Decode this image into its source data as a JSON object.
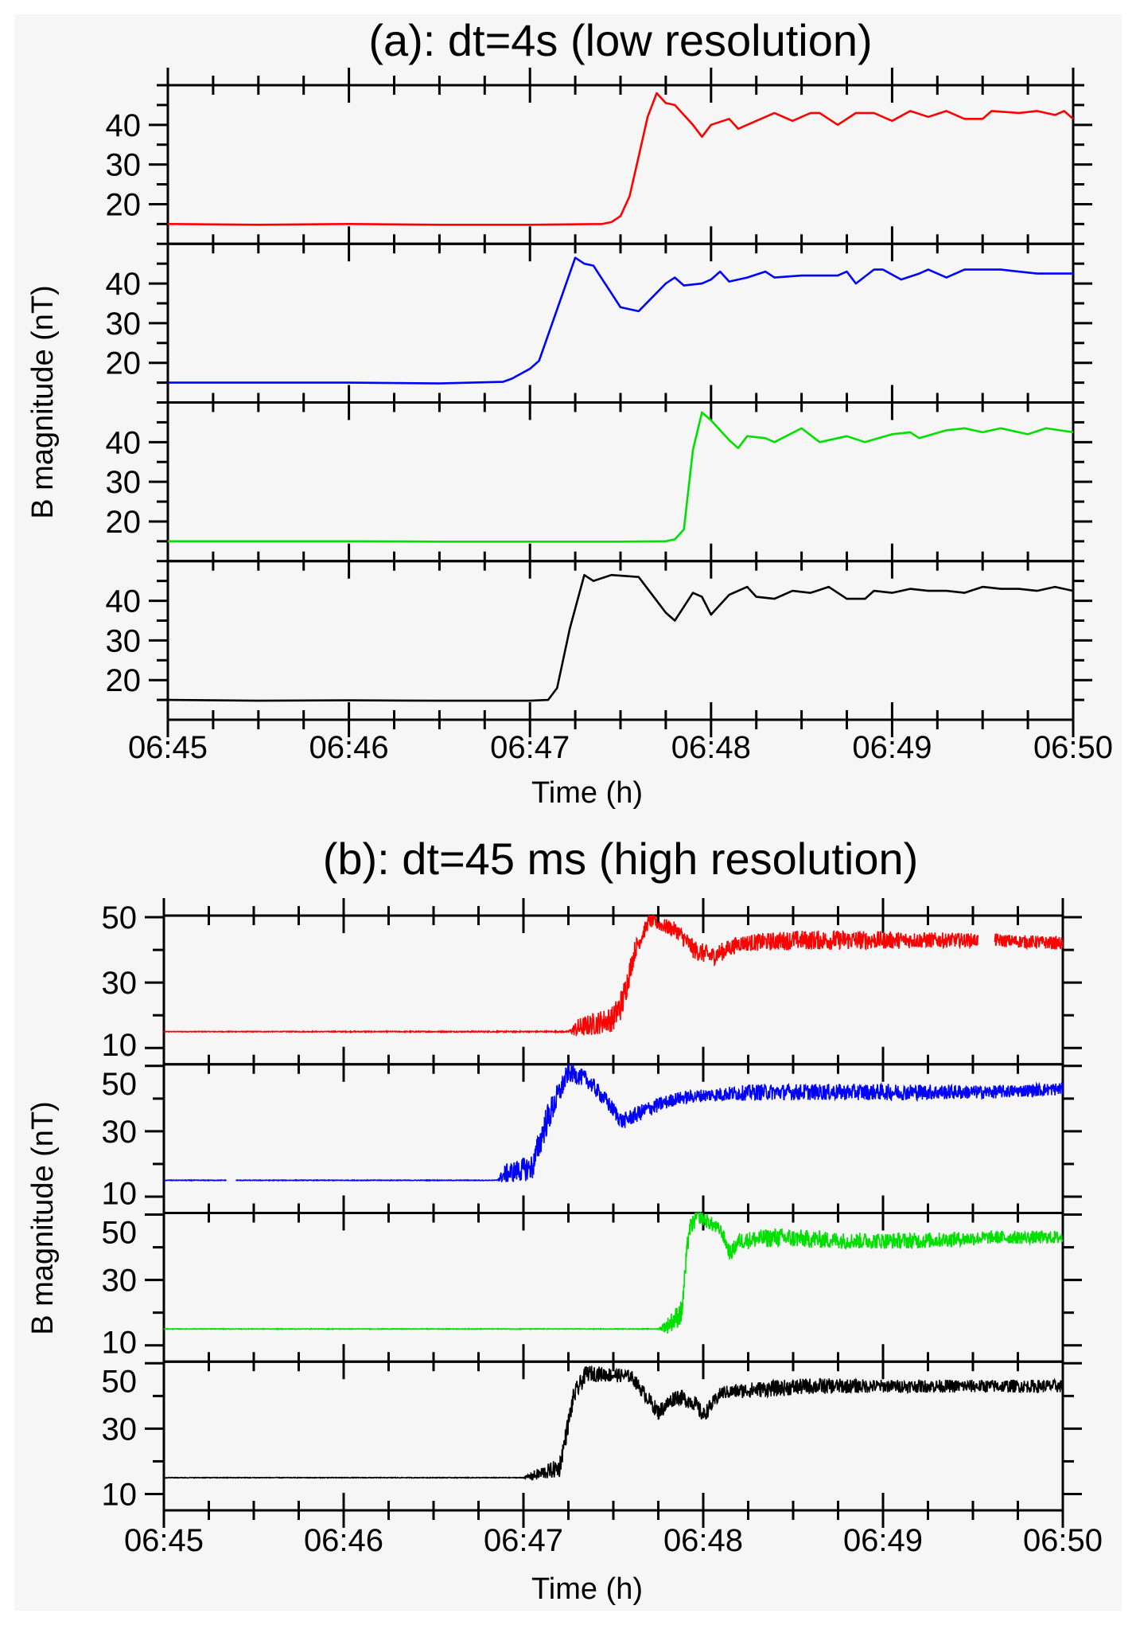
{
  "chart_data": [
    {
      "type": "line",
      "title": "(a): dt=4s (low resolution)",
      "xlabel": "Time (h)",
      "ylabel": "B magnitude (nT)",
      "xlim": [
        0,
        5
      ],
      "x_unit": "minutes after 06:45",
      "xticks": [
        "06:45",
        "06:46",
        "06:47",
        "06:48",
        "06:49",
        "06:50"
      ],
      "ylim": [
        10,
        50
      ],
      "yticks": [
        20,
        30,
        40
      ],
      "grid": false,
      "series": [
        {
          "name": "panel-1",
          "color": "#ff0000",
          "x": [
            0,
            0.5,
            1,
            1.5,
            2,
            2.4,
            2.45,
            2.5,
            2.55,
            2.6,
            2.65,
            2.7,
            2.75,
            2.8,
            2.9,
            2.95,
            3.0,
            3.1,
            3.15,
            3.25,
            3.35,
            3.45,
            3.55,
            3.6,
            3.7,
            3.8,
            3.9,
            4.0,
            4.1,
            4.2,
            4.3,
            4.4,
            4.5,
            4.55,
            4.7,
            4.8,
            4.9,
            4.95,
            5.0
          ],
          "y": [
            15,
            14.8,
            15,
            14.8,
            14.8,
            15,
            15.5,
            17,
            22,
            32,
            42,
            48,
            45.5,
            45,
            40,
            37,
            40,
            41.5,
            39,
            41,
            43,
            41,
            43,
            43,
            40,
            43,
            43,
            41,
            43.5,
            42,
            43.5,
            41.5,
            41.5,
            43.5,
            43,
            43.5,
            42.5,
            43.5,
            41.5
          ]
        },
        {
          "name": "panel-2",
          "color": "#0000ff",
          "x": [
            0,
            0.5,
            1,
            1.5,
            1.85,
            1.9,
            2.0,
            2.05,
            2.1,
            2.2,
            2.25,
            2.3,
            2.35,
            2.5,
            2.6,
            2.75,
            2.8,
            2.85,
            2.95,
            3.0,
            3.05,
            3.1,
            3.2,
            3.3,
            3.35,
            3.5,
            3.7,
            3.75,
            3.8,
            3.9,
            3.95,
            4.05,
            4.15,
            4.2,
            4.3,
            4.4,
            4.6,
            4.8,
            5.0
          ],
          "y": [
            15,
            15,
            15,
            14.8,
            15.2,
            16,
            18.5,
            20.5,
            27,
            40,
            46.5,
            45,
            44.5,
            34,
            33,
            40,
            41.5,
            39.5,
            40,
            41,
            43,
            40.5,
            41.5,
            43,
            41.5,
            42,
            42,
            43,
            40,
            43.5,
            43.5,
            41,
            42.5,
            43.5,
            41.5,
            43.5,
            43.5,
            42.5,
            42.5
          ]
        },
        {
          "name": "panel-3",
          "color": "#00e000",
          "x": [
            0,
            0.5,
            1,
            1.5,
            2,
            2.5,
            2.75,
            2.8,
            2.85,
            2.9,
            2.95,
            3.0,
            3.1,
            3.15,
            3.2,
            3.3,
            3.35,
            3.5,
            3.6,
            3.75,
            3.85,
            4.0,
            4.1,
            4.15,
            4.3,
            4.4,
            4.5,
            4.6,
            4.75,
            4.85,
            5.0
          ],
          "y": [
            15,
            15,
            15,
            14.9,
            14.9,
            14.9,
            15,
            15.5,
            18,
            38,
            47.5,
            45.5,
            40.5,
            38.5,
            41.5,
            41,
            40,
            43.5,
            40,
            41.5,
            40,
            42,
            42.5,
            41,
            43,
            43.5,
            42.5,
            43.5,
            42,
            43.5,
            42.5
          ]
        },
        {
          "name": "panel-4",
          "color": "#000000",
          "x": [
            0,
            0.5,
            1,
            1.5,
            2,
            2.1,
            2.15,
            2.22,
            2.3,
            2.35,
            2.45,
            2.6,
            2.75,
            2.8,
            2.9,
            2.95,
            3.0,
            3.05,
            3.1,
            3.2,
            3.25,
            3.35,
            3.45,
            3.55,
            3.65,
            3.75,
            3.85,
            3.9,
            4.0,
            4.1,
            4.2,
            4.3,
            4.4,
            4.5,
            4.6,
            4.7,
            4.8,
            4.9,
            5.0
          ],
          "y": [
            15,
            14.8,
            14.9,
            14.8,
            14.8,
            15,
            18,
            33,
            46.5,
            45,
            46.5,
            46,
            37,
            35,
            42,
            41,
            36.5,
            39,
            41.5,
            43.5,
            41,
            40.5,
            42.5,
            42,
            43.5,
            40.5,
            40.5,
            42.5,
            42,
            43,
            42.5,
            42.5,
            42,
            43.5,
            43,
            43,
            42.5,
            43.5,
            42.5
          ]
        }
      ]
    },
    {
      "type": "line",
      "title": "(b): dt=45 ms (high resolution)",
      "xlabel": "Time (h)",
      "ylabel": "B magnitude (nT)",
      "xlim": [
        0,
        5
      ],
      "x_unit": "minutes after 06:45",
      "xticks": [
        "06:45",
        "06:46",
        "06:47",
        "06:48",
        "06:49",
        "06:50"
      ],
      "ylim": [
        5,
        50.5
      ],
      "yticks": [
        10,
        30,
        50
      ],
      "grid": false,
      "note": "envelope anchors (x, mean y, noise amplitude)",
      "series": [
        {
          "name": "panel-1",
          "color": "#ff0000",
          "gaps": [
            [
              4.53,
              4.62
            ]
          ],
          "x": [
            0,
            2.25,
            2.3,
            2.5,
            2.55,
            2.62,
            2.7,
            2.85,
            2.95,
            3.05,
            3.2,
            3.5,
            3.8,
            4.2,
            4.6,
            5.0
          ],
          "y": [
            15,
            15,
            16,
            19,
            24,
            40,
            49,
            46,
            40,
            38,
            42,
            43,
            43,
            43,
            43,
            42
          ],
          "noise": [
            0.1,
            0.2,
            3,
            4,
            5,
            3,
            2,
            2.5,
            3,
            3,
            2.5,
            3,
            3,
            2.5,
            2,
            2
          ]
        },
        {
          "name": "panel-2",
          "color": "#0000ff",
          "gaps": [
            [
              0.35,
              0.4
            ]
          ],
          "x": [
            0,
            1.85,
            1.9,
            2.05,
            2.12,
            2.25,
            2.35,
            2.45,
            2.55,
            2.7,
            2.85,
            3.0,
            3.3,
            3.7,
            4.2,
            4.6,
            5.0
          ],
          "y": [
            15,
            15,
            17,
            19,
            32,
            48,
            46,
            40,
            33,
            37,
            40,
            41,
            42,
            42,
            42,
            42,
            43
          ],
          "noise": [
            0.1,
            0.1,
            3,
            4,
            5,
            3,
            2.5,
            2.5,
            2.5,
            2.5,
            2,
            2,
            2.5,
            2.5,
            2.5,
            2,
            2
          ]
        },
        {
          "name": "panel-3",
          "color": "#00e000",
          "x": [
            0,
            2.75,
            2.8,
            2.88,
            2.92,
            2.97,
            3.1,
            3.15,
            3.2,
            3.4,
            3.8,
            4.2,
            4.6,
            5.0
          ],
          "y": [
            15,
            15,
            16,
            20,
            45,
            50,
            45,
            38,
            42,
            43,
            42,
            42,
            43,
            43
          ],
          "noise": [
            0.1,
            0.1,
            2.5,
            4,
            3,
            2.5,
            2,
            2.5,
            2.5,
            3,
            2.5,
            2.5,
            2,
            2
          ]
        },
        {
          "name": "panel-4",
          "color": "#000000",
          "x": [
            0,
            2.0,
            2.05,
            2.2,
            2.28,
            2.35,
            2.6,
            2.75,
            2.85,
            2.95,
            3.0,
            3.1,
            3.3,
            3.6,
            4.0,
            4.5,
            5.0
          ],
          "y": [
            15,
            15,
            15.5,
            18,
            40,
            47,
            46,
            35,
            40,
            38,
            34,
            41,
            42,
            43,
            43,
            43,
            43
          ],
          "noise": [
            0.1,
            0.1,
            1.5,
            3,
            3,
            2.5,
            2,
            2.5,
            2.5,
            2.5,
            2.5,
            2,
            2.5,
            2.5,
            2,
            2,
            2
          ]
        }
      ]
    }
  ]
}
